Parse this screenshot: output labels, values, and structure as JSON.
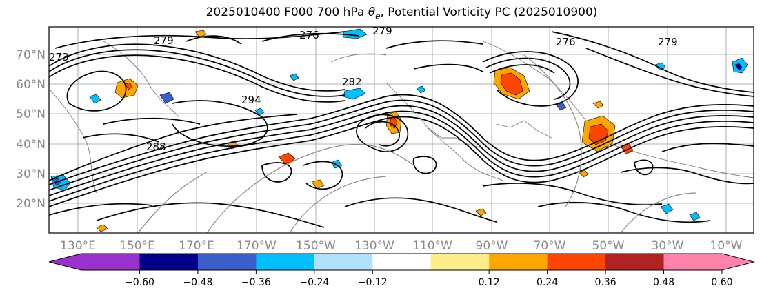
{
  "title_text": "2025010400 F000 700 hPa θe, Potential Vorticity PC (2025010900)",
  "title_parts": {
    "prefix": "2025010400 F000 700 hPa ",
    "theta": "θ",
    "sub": "e",
    "suffix": ", Potential Vorticity PC (2025010900)"
  },
  "lat_labels": [
    "70°N",
    "60°N",
    "50°N",
    "40°N",
    "30°N",
    "20°N"
  ],
  "lon_labels": [
    "130°E",
    "150°E",
    "170°E",
    "170°W",
    "150°W",
    "130°W",
    "110°W",
    "90°W",
    "70°W",
    "50°W",
    "30°W",
    "10°W"
  ],
  "contour_labels": [
    "279",
    "273",
    "276",
    "279",
    "294",
    "282",
    "276",
    "288",
    "279"
  ],
  "colorbar": {
    "tick_labels": [
      "−0.60",
      "−0.48",
      "−0.36",
      "−0.24",
      "−0.12",
      "0.12",
      "0.24",
      "0.36",
      "0.48",
      "0.60"
    ],
    "colors": [
      "#9932cc",
      "#00008b",
      "#3a5fcd",
      "#00bfff",
      "#b0e2ff",
      "#ffffff",
      "#ffec8b",
      "#ffa500",
      "#ff4500",
      "#b22222",
      "#ff82ab",
      "#ff82ab"
    ]
  },
  "colors": {
    "background": "#ffffff",
    "contour": "#000000",
    "graticule": "#8a8a8a",
    "coast": "#888888"
  }
}
